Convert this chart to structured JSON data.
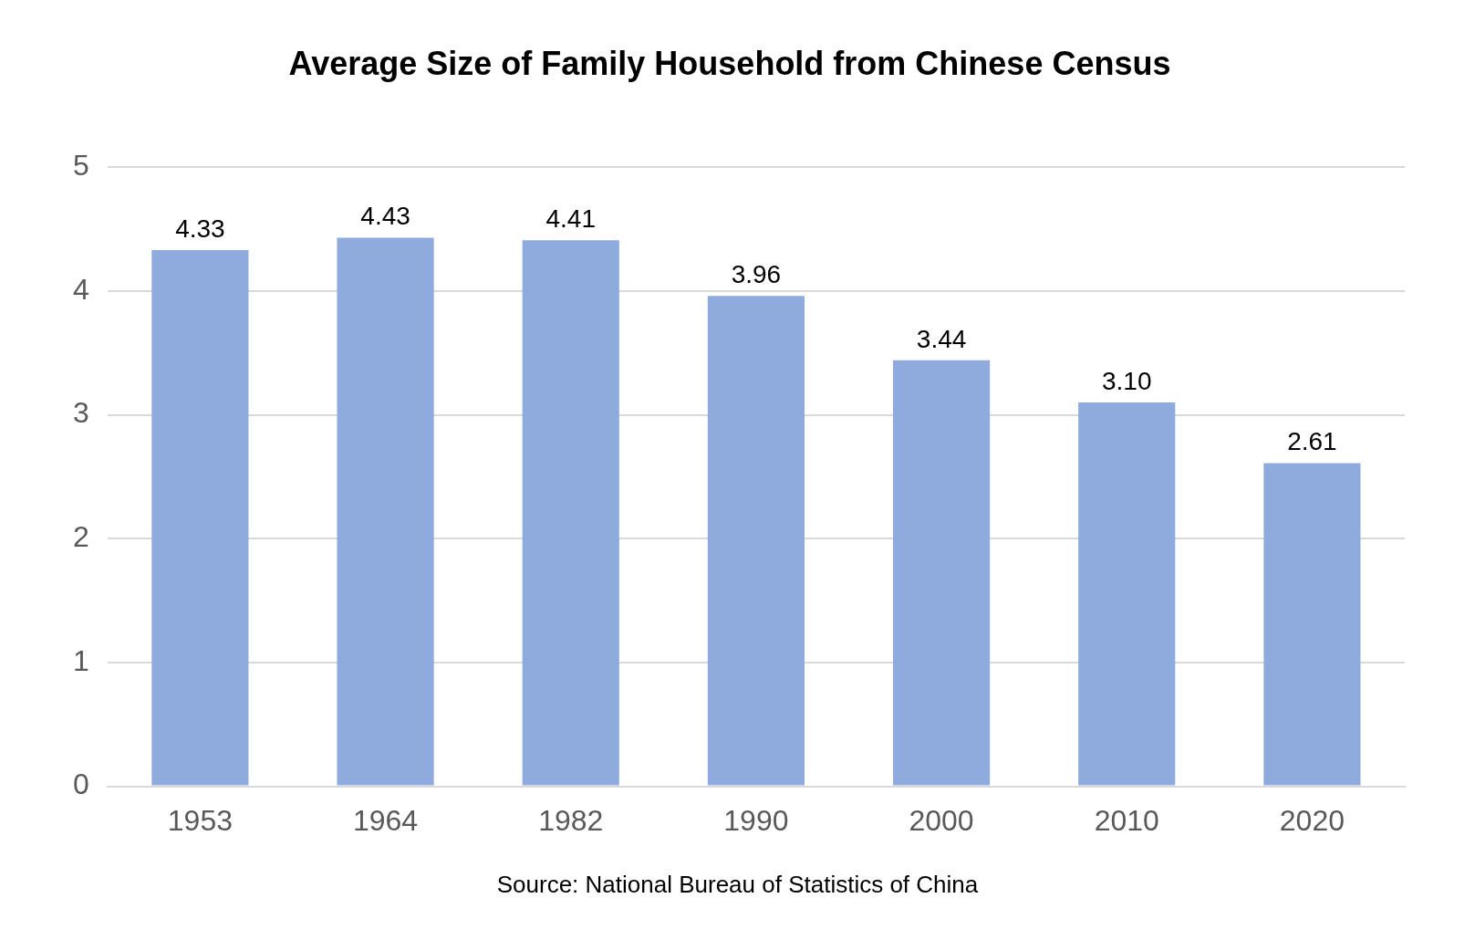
{
  "chart_data": {
    "type": "bar",
    "title": "Average Size of Family Household from Chinese Census",
    "categories": [
      "1953",
      "1964",
      "1982",
      "1990",
      "2000",
      "2010",
      "2020"
    ],
    "values": [
      4.33,
      4.43,
      4.41,
      3.96,
      3.44,
      3.1,
      2.61
    ],
    "value_labels": [
      "4.33",
      "4.43",
      "4.41",
      "3.96",
      "3.44",
      "3.10",
      "2.61"
    ],
    "color": "#8faadc",
    "ylim": [
      0,
      5
    ],
    "yticks": [
      0,
      1,
      2,
      3,
      4,
      5
    ],
    "grid": "y",
    "annotations": [
      "Source: National Bureau of Statistics of China"
    ]
  }
}
